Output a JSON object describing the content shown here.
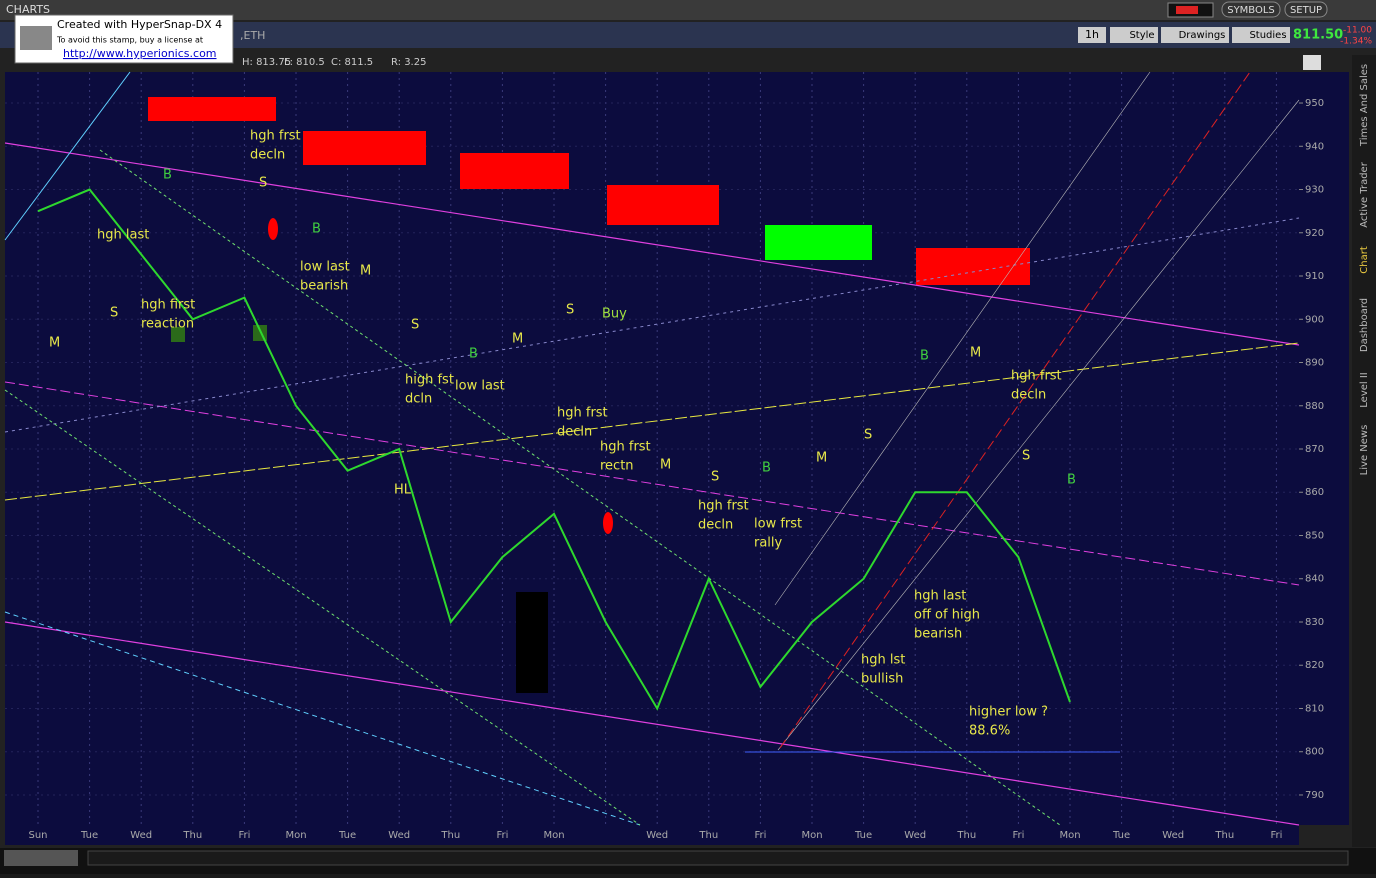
{
  "window": {
    "title": "CHARTS",
    "symbols": "SYMBOLS",
    "setup": "SETUP"
  },
  "toolbar": {
    "symbol_suffix": ",ETH",
    "interval": "1h",
    "style": "Style",
    "drawings": "Drawings",
    "studies": "Studies",
    "last": "811.50",
    "change": "-11.00",
    "change_pct": "-1.34%"
  },
  "status": {
    "high": "H: 813.75",
    "low": "L: 810.5",
    "close": "C: 811.5",
    "range": "R: 3.25"
  },
  "stamp": {
    "line1": "Created with HyperSnap-DX 4",
    "line2": "To avoid this stamp, buy a license at",
    "url": "http://www.hyperionics.com"
  },
  "side_tabs": [
    "Times And Sales",
    "Active Trader",
    "Chart",
    "Dashboard",
    "Level II",
    "Live News"
  ],
  "chart_data": {
    "type": "line",
    "categories": [
      "Sun",
      "Tue",
      "Wed",
      "Thu",
      "Fri",
      "Mon",
      "Tue",
      "Wed",
      "Thu",
      "Fri",
      "Mon",
      null,
      "Wed",
      "Thu",
      "Fri",
      "Mon",
      "Tue",
      "Wed",
      "Thu",
      "Fri",
      "Mon",
      "Tue",
      "Wed",
      "Thu",
      "Fri"
    ],
    "series": [
      {
        "name": "Price",
        "color": "#2ed82e",
        "values": [
          925,
          930,
          915,
          900,
          905,
          880,
          865,
          870,
          830,
          845,
          855,
          830,
          810,
          840,
          815,
          830,
          840,
          860,
          860,
          845,
          811.5,
          null,
          null,
          null,
          null
        ]
      }
    ],
    "ylim": [
      785,
      955
    ],
    "yticks": [
      790,
      800,
      810,
      820,
      830,
      840,
      850,
      860,
      870,
      880,
      890,
      900,
      910,
      920,
      930,
      940,
      950
    ],
    "grid": true,
    "annotations": [
      "hgh  last",
      "B",
      "S",
      "hgh frst",
      "decln",
      "B",
      "low last",
      "bearish",
      "M",
      "hgh  first",
      "reaction",
      "S",
      "M",
      "S",
      "S",
      "Buy",
      "M",
      "B",
      "high fst",
      "dcln",
      "low  last",
      "HL",
      "hgh frst",
      "decln",
      "hgh frst",
      "rectn",
      "M",
      "S",
      "B",
      "M",
      "S",
      "hgh frst",
      "decln",
      "low frst",
      "rally",
      "B",
      "M",
      "hgh frst",
      "decln",
      "S",
      "B",
      "hgh last",
      "off of high",
      "bearish",
      "hgh lst",
      "bullish",
      "higher low ?",
      "88.6%"
    ]
  }
}
